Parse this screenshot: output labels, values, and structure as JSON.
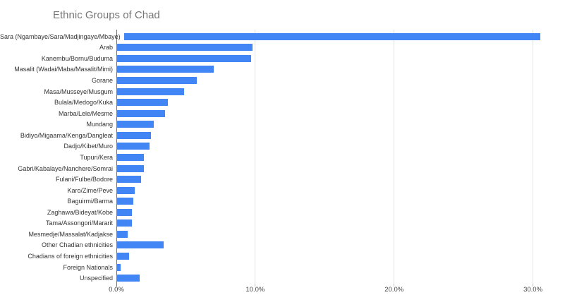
{
  "chart_data": {
    "type": "bar",
    "orientation": "horizontal",
    "title": "Ethnic Groups of Chad",
    "xlabel": "",
    "ylabel": "",
    "legend": "none",
    "grid_on": true,
    "xlim": [
      0,
      31.8
    ],
    "x_ticks": [
      {
        "value": 0,
        "label": "0.0%"
      },
      {
        "value": 10,
        "label": "10.0%"
      },
      {
        "value": 20,
        "label": "20.0%"
      },
      {
        "value": 30,
        "label": "30.0%"
      }
    ],
    "categories": [
      "Sara (Ngambaye/Sara/Madjingaye/Mbaye)",
      "Arab",
      "Kanembu/Bornu/Buduma",
      "Masalit (Wadai/Maba/Masalit/Mimi)",
      "Gorane",
      "Masa/Musseye/Musgum",
      "Bulala/Medogo/Kuka",
      "Marba/Lele/Mesme",
      "Mundang",
      "Bidiyo/Migaama/Kenga/Dangleat",
      "Dadjo/Kibet/Muro",
      "Tupuri/Kera",
      "Gabri/Kabalaye/Nanchere/Somrai",
      "Fulani/Fulbe/Bodore",
      "Karo/Zime/Peve",
      "Baguirmi/Barma",
      "Zaghawa/Bideyat/Kobe",
      "Tama/Assongori/Mararit",
      "Mesmedje/Massalat/Kadjakse",
      "Other Chadian ethnicities",
      "Chadians of foreign ethnicities",
      "Foreign Nationals",
      "Unspecified"
    ],
    "values": [
      30.5,
      9.8,
      9.7,
      7.0,
      5.8,
      4.9,
      3.7,
      3.5,
      2.7,
      2.5,
      2.4,
      2.0,
      2.0,
      1.8,
      1.3,
      1.2,
      1.1,
      1.1,
      0.8,
      3.4,
      0.9,
      0.3,
      1.7
    ],
    "value_unit": "%",
    "colors": {
      "bar": "#4285f4",
      "gridline": "#e3e3e3",
      "baseline": "#6e6e6e",
      "title": "#757575",
      "category_label": "#333333",
      "tick_label": "#444444",
      "background": "#ffffff"
    }
  }
}
